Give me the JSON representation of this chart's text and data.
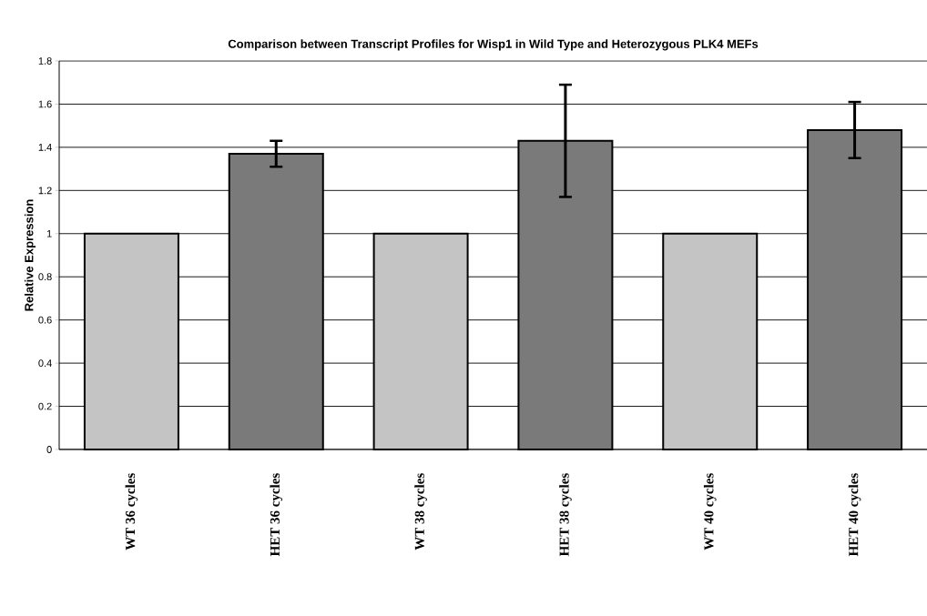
{
  "chart_data": {
    "type": "bar",
    "title": "Comparison between Transcript Profiles for Wisp1 in Wild Type and Heterozygous PLK4 MEFs",
    "ylabel": "Relative Expression",
    "categories": [
      "WT 36 cycles",
      "HET 36 cycles",
      "WT 38 cycles",
      "HET 38 cycles",
      "WT 40 cycles",
      "HET 40 cycles"
    ],
    "values": [
      1,
      1.37,
      1,
      1.43,
      1,
      1.48
    ],
    "errors": [
      null,
      0.06,
      null,
      0.26,
      null,
      0.13
    ],
    "colors": [
      "#c4c4c4",
      "#7a7a7a",
      "#c4c4c4",
      "#7a7a7a",
      "#c4c4c4",
      "#7a7a7a"
    ],
    "ylim": [
      0,
      1.8
    ],
    "yticks": [
      0,
      0.2,
      0.4,
      0.6,
      0.8,
      1,
      1.2,
      1.4,
      1.6,
      1.8
    ],
    "grid": "y"
  }
}
